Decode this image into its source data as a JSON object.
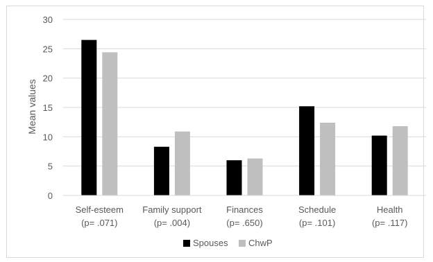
{
  "chart_data": {
    "type": "bar",
    "ylabel": "Mean values",
    "ylim": [
      0,
      30
    ],
    "yticks": [
      0,
      5,
      10,
      15,
      20,
      25,
      30
    ],
    "grid": true,
    "legend_position": "bottom",
    "categories": [
      {
        "name": "Self-esteem",
        "pvalue": "(p= .071)"
      },
      {
        "name": "Family support",
        "pvalue": "(p= .004)"
      },
      {
        "name": "Finances",
        "pvalue": "(p= .650)"
      },
      {
        "name": "Schedule",
        "pvalue": "(p= .101)"
      },
      {
        "name": "Health",
        "pvalue": "(p= .117)"
      }
    ],
    "series": [
      {
        "name": "Spouses",
        "color": "#000000",
        "values": [
          26.5,
          8.3,
          6.0,
          15.2,
          10.2
        ]
      },
      {
        "name": "ChwP",
        "color": "#bfbfbf",
        "values": [
          24.4,
          10.9,
          6.3,
          12.4,
          11.8
        ]
      }
    ]
  }
}
